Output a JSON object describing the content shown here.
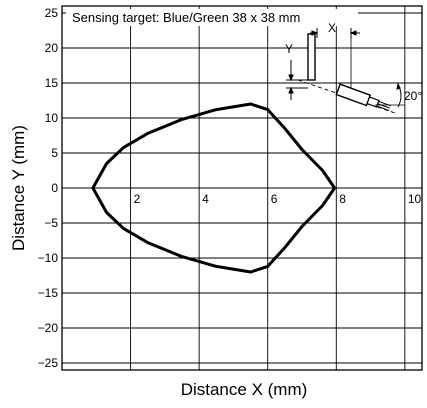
{
  "chart_data": {
    "type": "line",
    "title": "Sensing target: Blue/Green 38 x 38 mm",
    "xlabel": "Distance X (mm)",
    "ylabel": "Distance Y (mm)",
    "xlim": [
      0,
      10.5
    ],
    "ylim": [
      -26,
      26
    ],
    "x_ticks": [
      "2",
      "4",
      "6",
      "8",
      "10"
    ],
    "y_ticks": [
      "25",
      "20",
      "15",
      "10",
      "5",
      "0",
      "−5",
      "−10",
      "−15",
      "−20",
      "−25"
    ],
    "grid": true,
    "series": [
      {
        "values": [
          [
            7.95,
            0
          ],
          [
            7.6,
            2.5
          ],
          [
            7.0,
            5.5
          ],
          [
            6.5,
            8.5
          ],
          [
            6.0,
            11.2
          ],
          [
            5.5,
            12
          ],
          [
            4.5,
            11.2
          ],
          [
            3.5,
            9.8
          ],
          [
            2.5,
            7.8
          ],
          [
            1.8,
            5.8
          ],
          [
            1.3,
            3.5
          ],
          [
            0.9,
            0
          ],
          [
            1.3,
            -3.5
          ],
          [
            1.8,
            -5.8
          ],
          [
            2.5,
            -7.8
          ],
          [
            3.5,
            -9.8
          ],
          [
            4.5,
            -11.2
          ],
          [
            5.5,
            -12
          ],
          [
            6.0,
            -11.2
          ],
          [
            6.5,
            -8.5
          ],
          [
            7.0,
            -5.5
          ],
          [
            7.6,
            -2.5
          ],
          [
            7.95,
            0
          ]
        ]
      }
    ]
  },
  "diagram": {
    "label_x": "X",
    "label_y": "Y",
    "angle_label": "20°"
  }
}
